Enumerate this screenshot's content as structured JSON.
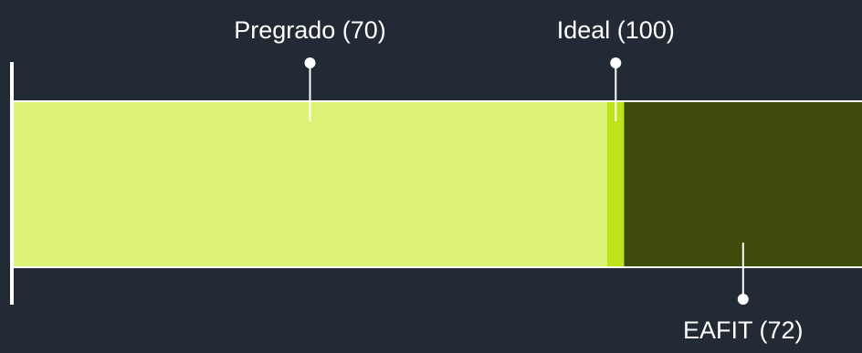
{
  "chart_data": {
    "type": "bar",
    "orientation": "horizontal",
    "stacked": true,
    "xlim": [
      0,
      100
    ],
    "segments": [
      {
        "name": "Pregrado",
        "value": 70,
        "color": "#dbf277"
      },
      {
        "name": "EAFIT",
        "value": 2,
        "color": "#bde31b"
      },
      {
        "name": "Ideal",
        "value": 28,
        "color": "#3e4b0b"
      }
    ],
    "annotations": [
      {
        "label": "Pregrado (70)",
        "position": "top"
      },
      {
        "label": "Ideal (100)",
        "position": "top"
      },
      {
        "label": "EAFIT (72)",
        "position": "bottom"
      }
    ],
    "title": "",
    "xlabel": "",
    "ylabel": ""
  },
  "colors": {
    "background": "#222a35",
    "axis": "#ffffff",
    "text": "#ffffff"
  }
}
